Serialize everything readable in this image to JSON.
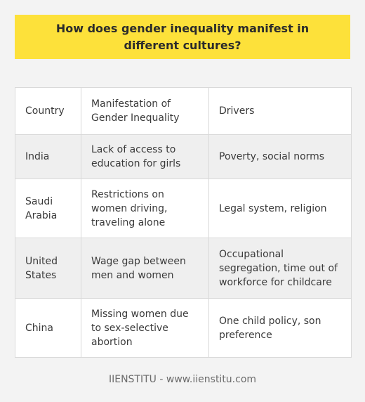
{
  "title": "How does gender inequality manifest in different cultures?",
  "table": {
    "header": [
      "Country",
      "Manifestation of Gender Inequality",
      "Drivers"
    ],
    "rows": [
      [
        "India",
        "Lack of access to education for girls",
        "Poverty, social norms"
      ],
      [
        "Saudi Arabia",
        "Restrictions on women driving, traveling alone",
        "Legal system, religion"
      ],
      [
        "United States",
        "Wage gap between men and women",
        "Occupational segregation, time out of workforce for childcare"
      ],
      [
        "China",
        "Missing women due to sex-selective abortion",
        "One child policy, son preference"
      ]
    ]
  },
  "footer": "IIENSTITU - www.iienstitu.com",
  "colors": {
    "title_background": "#fde13a",
    "page_background": "#f3f3f3",
    "row_alt": "#efefef"
  }
}
